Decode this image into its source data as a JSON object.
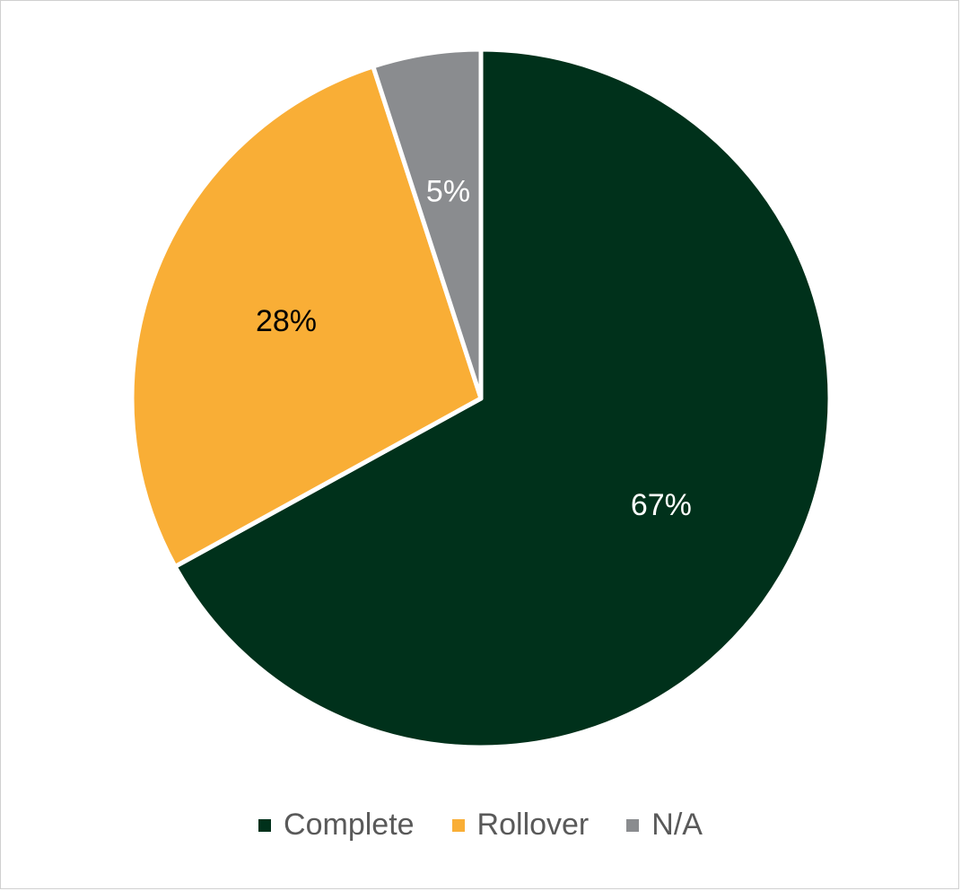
{
  "chart_data": {
    "type": "pie",
    "categories": [
      "Complete",
      "Rollover",
      "N/A"
    ],
    "values": [
      67,
      28,
      5
    ],
    "value_labels": [
      "67%",
      "28%",
      "5%"
    ],
    "colors": [
      "#00311B",
      "#F9AE36",
      "#8A8C8F"
    ],
    "label_colors": [
      "#ffffff",
      "#000000",
      "#ffffff"
    ],
    "start_angle_deg": 0,
    "direction": "clockwise",
    "legend_position": "bottom",
    "title": ""
  },
  "legend": {
    "items": [
      {
        "label": "Complete",
        "color": "#00311B"
      },
      {
        "label": "Rollover",
        "color": "#F9AE36"
      },
      {
        "label": "N/A",
        "color": "#8A8C8F"
      }
    ]
  }
}
